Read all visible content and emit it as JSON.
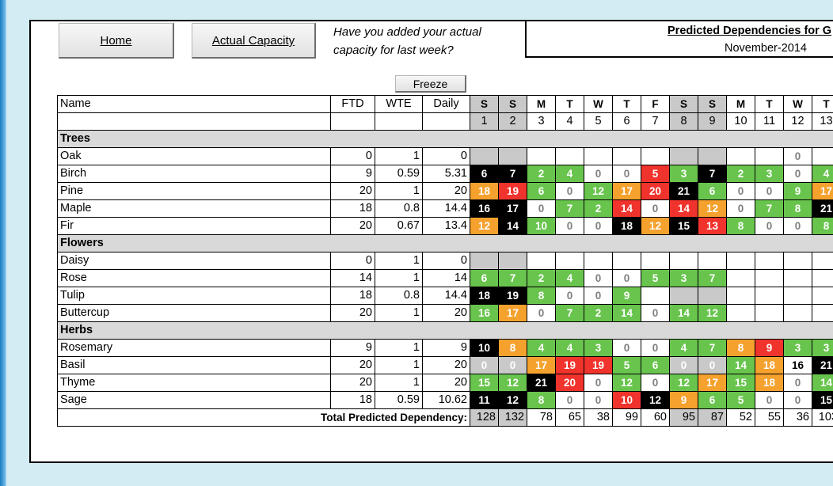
{
  "buttons": {
    "home": "Home",
    "actual_capacity": "Actual Capacity",
    "freeze": "Freeze"
  },
  "question": [
    "Have you added your actual",
    "capacity for last week?"
  ],
  "predicted": {
    "title": "Predicted Dependencies for G",
    "month": "November-2014"
  },
  "columns": {
    "name": "Name",
    "ftd": "FTD",
    "wte": "WTE",
    "daily": "Daily"
  },
  "days": [
    {
      "letter": "S",
      "num": "1",
      "weekend": true
    },
    {
      "letter": "S",
      "num": "2",
      "weekend": true
    },
    {
      "letter": "M",
      "num": "3",
      "weekend": false
    },
    {
      "letter": "T",
      "num": "4",
      "weekend": false
    },
    {
      "letter": "W",
      "num": "5",
      "weekend": false
    },
    {
      "letter": "T",
      "num": "6",
      "weekend": false
    },
    {
      "letter": "F",
      "num": "7",
      "weekend": false
    },
    {
      "letter": "S",
      "num": "8",
      "weekend": true
    },
    {
      "letter": "S",
      "num": "9",
      "weekend": true
    },
    {
      "letter": "M",
      "num": "10",
      "weekend": false
    },
    {
      "letter": "T",
      "num": "11",
      "weekend": false
    },
    {
      "letter": "W",
      "num": "12",
      "weekend": false
    },
    {
      "letter": "T",
      "num": "13",
      "weekend": false
    }
  ],
  "colors": {
    "green": "#68c44d",
    "orange": "#f5a12d",
    "red": "#f0332c",
    "black": "#000000",
    "grey": "#c9c9c9",
    "section": "#d9d9d9"
  },
  "sections": [
    {
      "name": "Trees",
      "rows": [
        {
          "name": "Oak",
          "ftd": "0",
          "wte": "1",
          "daily": "0",
          "cells": [
            [
              "",
              "x"
            ],
            [
              "",
              "x"
            ],
            [
              "",
              "W"
            ],
            [
              "",
              "W"
            ],
            [
              "",
              "W"
            ],
            [
              "",
              "W"
            ],
            [
              "",
              "W"
            ],
            [
              "",
              "x"
            ],
            [
              "",
              "x"
            ],
            [
              "",
              "W"
            ],
            [
              "",
              "W"
            ],
            [
              "0",
              "w"
            ],
            [
              "",
              "W"
            ]
          ]
        },
        {
          "name": "Birch",
          "ftd": "9",
          "wte": "0.59",
          "daily": "5.31",
          "cells": [
            [
              "6",
              "k"
            ],
            [
              "7",
              "k"
            ],
            [
              "2",
              "g"
            ],
            [
              "4",
              "g"
            ],
            [
              "0",
              "w"
            ],
            [
              "0",
              "w"
            ],
            [
              "5",
              "r"
            ],
            [
              "3",
              "g"
            ],
            [
              "7",
              "k"
            ],
            [
              "2",
              "g"
            ],
            [
              "3",
              "g"
            ],
            [
              "0",
              "w"
            ],
            [
              "4",
              "g"
            ]
          ]
        },
        {
          "name": "Pine",
          "ftd": "20",
          "wte": "1",
          "daily": "20",
          "cells": [
            [
              "18",
              "o"
            ],
            [
              "19",
              "r"
            ],
            [
              "6",
              "g"
            ],
            [
              "0",
              "w"
            ],
            [
              "12",
              "g"
            ],
            [
              "17",
              "o"
            ],
            [
              "20",
              "r"
            ],
            [
              "21",
              "k"
            ],
            [
              "6",
              "g"
            ],
            [
              "0",
              "w"
            ],
            [
              "0",
              "w"
            ],
            [
              "9",
              "g"
            ],
            [
              "17",
              "o"
            ]
          ]
        },
        {
          "name": "Maple",
          "ftd": "18",
          "wte": "0.8",
          "daily": "14.4",
          "cells": [
            [
              "16",
              "k"
            ],
            [
              "17",
              "k"
            ],
            [
              "0",
              "w"
            ],
            [
              "7",
              "g"
            ],
            [
              "2",
              "g"
            ],
            [
              "14",
              "r"
            ],
            [
              "0",
              "w"
            ],
            [
              "14",
              "r"
            ],
            [
              "12",
              "o"
            ],
            [
              "0",
              "w"
            ],
            [
              "7",
              "g"
            ],
            [
              "8",
              "g"
            ],
            [
              "21",
              "k"
            ]
          ]
        },
        {
          "name": "Fir",
          "ftd": "20",
          "wte": "0.67",
          "daily": "13.4",
          "cells": [
            [
              "12",
              "o"
            ],
            [
              "14",
              "k"
            ],
            [
              "10",
              "g"
            ],
            [
              "0",
              "w"
            ],
            [
              "0",
              "w"
            ],
            [
              "18",
              "k"
            ],
            [
              "12",
              "o"
            ],
            [
              "15",
              "k"
            ],
            [
              "13",
              "r"
            ],
            [
              "8",
              "g"
            ],
            [
              "0",
              "w"
            ],
            [
              "0",
              "w"
            ],
            [
              "8",
              "g"
            ]
          ]
        }
      ]
    },
    {
      "name": "Flowers",
      "rows": [
        {
          "name": "Daisy",
          "ftd": "0",
          "wte": "1",
          "daily": "0",
          "cells": [
            [
              "",
              "x"
            ],
            [
              "",
              "x"
            ],
            [
              "",
              "W"
            ],
            [
              "",
              "W"
            ],
            [
              "",
              "W"
            ],
            [
              "",
              "W"
            ],
            [
              "",
              "W"
            ],
            [
              "",
              "W"
            ],
            [
              "",
              "W"
            ],
            [
              "",
              "W"
            ],
            [
              "",
              "W"
            ],
            [
              "",
              "W"
            ],
            [
              "",
              "W"
            ]
          ]
        },
        {
          "name": "Rose",
          "ftd": "14",
          "wte": "1",
          "daily": "14",
          "cells": [
            [
              "6",
              "g"
            ],
            [
              "7",
              "g"
            ],
            [
              "2",
              "g"
            ],
            [
              "4",
              "g"
            ],
            [
              "0",
              "w"
            ],
            [
              "0",
              "w"
            ],
            [
              "5",
              "g"
            ],
            [
              "3",
              "g"
            ],
            [
              "7",
              "g"
            ],
            [
              "",
              "W"
            ],
            [
              "",
              "W"
            ],
            [
              "",
              "W"
            ],
            [
              "",
              "W"
            ]
          ]
        },
        {
          "name": "Tulip",
          "ftd": "18",
          "wte": "0.8",
          "daily": "14.4",
          "cells": [
            [
              "18",
              "k"
            ],
            [
              "19",
              "k"
            ],
            [
              "8",
              "g"
            ],
            [
              "0",
              "w"
            ],
            [
              "0",
              "w"
            ],
            [
              "9",
              "g"
            ],
            [
              "",
              "W"
            ],
            [
              "",
              "x"
            ],
            [
              "",
              "x"
            ],
            [
              "",
              "W"
            ],
            [
              "",
              "W"
            ],
            [
              "",
              "W"
            ],
            [
              "",
              "W"
            ]
          ]
        },
        {
          "name": "Buttercup",
          "ftd": "20",
          "wte": "1",
          "daily": "20",
          "cells": [
            [
              "16",
              "g"
            ],
            [
              "17",
              "o"
            ],
            [
              "0",
              "w"
            ],
            [
              "7",
              "g"
            ],
            [
              "2",
              "g"
            ],
            [
              "14",
              "g"
            ],
            [
              "0",
              "w"
            ],
            [
              "14",
              "g"
            ],
            [
              "12",
              "g"
            ],
            [
              "",
              "W"
            ],
            [
              "",
              "W"
            ],
            [
              "",
              "W"
            ],
            [
              "",
              "W"
            ]
          ]
        }
      ]
    },
    {
      "name": "Herbs",
      "rows": [
        {
          "name": "Rosemary",
          "ftd": "9",
          "wte": "1",
          "daily": "9",
          "cells": [
            [
              "10",
              "k"
            ],
            [
              "8",
              "o"
            ],
            [
              "4",
              "g"
            ],
            [
              "4",
              "g"
            ],
            [
              "3",
              "g"
            ],
            [
              "0",
              "w"
            ],
            [
              "0",
              "w"
            ],
            [
              "4",
              "g"
            ],
            [
              "7",
              "g"
            ],
            [
              "8",
              "o"
            ],
            [
              "9",
              "r"
            ],
            [
              "3",
              "g"
            ],
            [
              "3",
              "g"
            ]
          ]
        },
        {
          "name": "Basil",
          "ftd": "20",
          "wte": "1",
          "daily": "20",
          "cells": [
            [
              "0",
              "e"
            ],
            [
              "0",
              "e"
            ],
            [
              "17",
              "o"
            ],
            [
              "19",
              "r"
            ],
            [
              "19",
              "r"
            ],
            [
              "5",
              "g"
            ],
            [
              "6",
              "g"
            ],
            [
              "0",
              "e"
            ],
            [
              "0",
              "e"
            ],
            [
              "14",
              "g"
            ],
            [
              "18",
              "o"
            ],
            [
              "16",
              "W"
            ],
            [
              "21",
              "k"
            ]
          ]
        },
        {
          "name": "Thyme",
          "ftd": "20",
          "wte": "1",
          "daily": "20",
          "cells": [
            [
              "15",
              "g"
            ],
            [
              "12",
              "g"
            ],
            [
              "21",
              "k"
            ],
            [
              "20",
              "r"
            ],
            [
              "0",
              "w"
            ],
            [
              "12",
              "g"
            ],
            [
              "0",
              "w"
            ],
            [
              "12",
              "g"
            ],
            [
              "17",
              "o"
            ],
            [
              "15",
              "g"
            ],
            [
              "18",
              "o"
            ],
            [
              "0",
              "w"
            ],
            [
              "14",
              "g"
            ]
          ]
        },
        {
          "name": "Sage",
          "ftd": "18",
          "wte": "0.59",
          "daily": "10.62",
          "cells": [
            [
              "11",
              "k"
            ],
            [
              "12",
              "k"
            ],
            [
              "8",
              "g"
            ],
            [
              "0",
              "w"
            ],
            [
              "0",
              "w"
            ],
            [
              "10",
              "r"
            ],
            [
              "12",
              "k"
            ],
            [
              "9",
              "o"
            ],
            [
              "6",
              "g"
            ],
            [
              "5",
              "g"
            ],
            [
              "0",
              "w"
            ],
            [
              "0",
              "w"
            ],
            [
              "15",
              "k"
            ]
          ]
        }
      ]
    }
  ],
  "total": {
    "label": "Total Predicted Dependency:",
    "values": [
      "128",
      "132",
      "78",
      "65",
      "38",
      "99",
      "60",
      "95",
      "87",
      "52",
      "55",
      "36",
      "103"
    ]
  }
}
